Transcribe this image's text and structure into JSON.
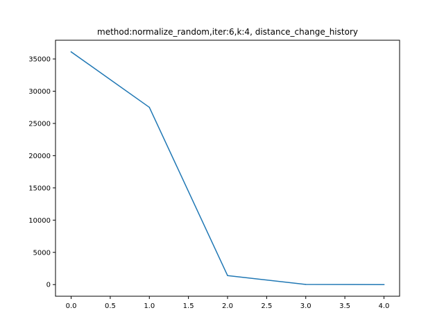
{
  "chart_data": {
    "type": "line",
    "title": "method:normalize_random,iter:6,k:4, distance_change_history",
    "xlabel": "",
    "ylabel": "",
    "x": [
      0,
      1,
      2,
      3,
      4
    ],
    "series": [
      {
        "values": [
          36100,
          27500,
          1400,
          20,
          0
        ],
        "color": "#1f77b4"
      }
    ],
    "xlim": [
      -0.2,
      4.2
    ],
    "ylim": [
      -1805,
      37905
    ],
    "xticks": [
      0.0,
      0.5,
      1.0,
      1.5,
      2.0,
      2.5,
      3.0,
      3.5,
      4.0
    ],
    "xtick_labels": [
      "0.0",
      "0.5",
      "1.0",
      "1.5",
      "2.0",
      "2.5",
      "3.0",
      "3.5",
      "4.0"
    ],
    "yticks": [
      0,
      5000,
      10000,
      15000,
      20000,
      25000,
      30000,
      35000
    ],
    "ytick_labels": [
      "0",
      "5000",
      "10000",
      "15000",
      "20000",
      "25000",
      "30000",
      "35000"
    ],
    "grid": false,
    "legend": "none"
  }
}
